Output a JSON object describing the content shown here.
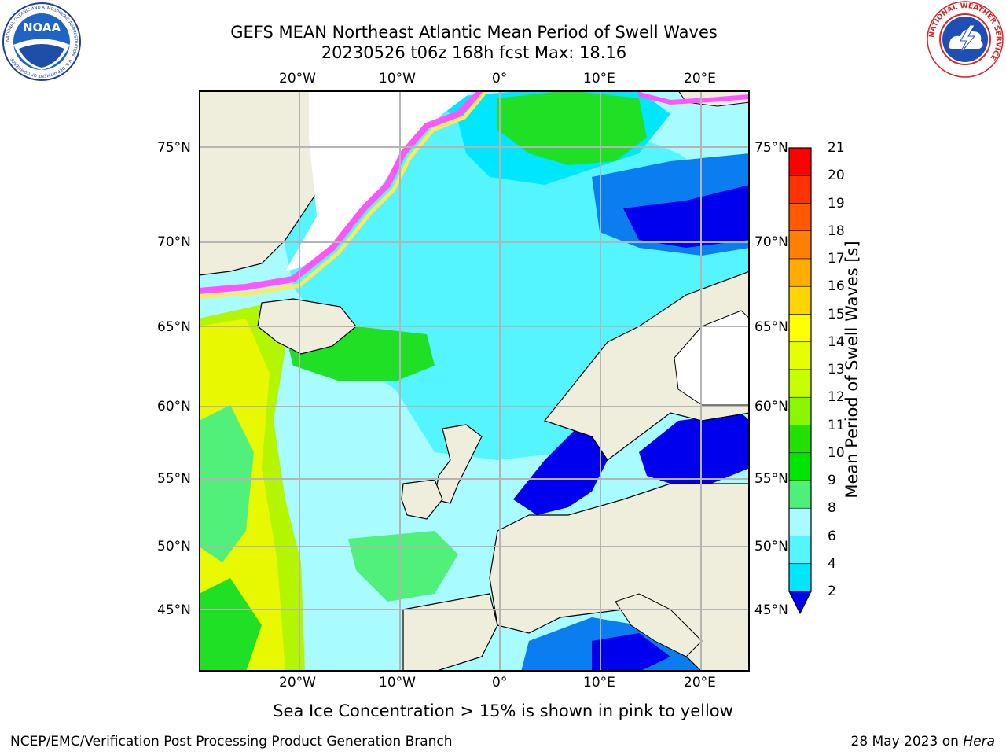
{
  "header": {
    "title_line1": "GEFS MEAN Northeast Atlantic Mean Period of Swell Waves",
    "title_line2": "20230526 t06z 168h fcst   Max: 18.16"
  },
  "logos": {
    "noaa_text": "NOAA",
    "noaa_ring_text": "NATIONAL OCEANIC AND ATMOSPHERIC ADMINISTRATION · U.S. DEPARTMENT OF COMMERCE",
    "nws_ring_text": "NATIONAL WEATHER SERVICE"
  },
  "map": {
    "lon_labels_top": [
      "20°W",
      "10°W",
      "0°",
      "10°E",
      "20°E"
    ],
    "lon_labels_bottom": [
      "20°W",
      "10°W",
      "0°",
      "10°E",
      "20°E"
    ],
    "lat_labels_left": [
      "75°N",
      "70°N",
      "65°N",
      "60°N",
      "55°N",
      "50°N",
      "45°N"
    ],
    "lat_labels_right": [
      "75°N",
      "70°N",
      "65°N",
      "60°N",
      "55°N",
      "50°N",
      "45°N"
    ],
    "ocean_colors": {
      "deep_blue": "#0000ee",
      "blue": "#0a7df0",
      "cyan": "#00e6ff",
      "light_cyan": "#55f5ff",
      "pale_cyan": "#a8fcff",
      "green_light": "#50f07a",
      "green": "#1fe024",
      "yellow_green": "#b4f500",
      "yellow": "#e8f800",
      "land": "#efeddc",
      "ice_pink": "#ff55ff",
      "ice_yellow": "#ffea55"
    }
  },
  "colorbar": {
    "label": "Mean Period of Swell Waves [s]",
    "ticks": [
      "21",
      "20",
      "19",
      "18",
      "17",
      "16",
      "15",
      "14",
      "13",
      "12",
      "11",
      "10",
      "9",
      "8",
      "6",
      "4",
      "2"
    ],
    "colors": [
      "#ff0000",
      "#ff3300",
      "#ff5a00",
      "#ff8000",
      "#ffae00",
      "#ffd500",
      "#ffff00",
      "#e6ff00",
      "#c8ff00",
      "#8cf500",
      "#24e000",
      "#00e600",
      "#4ef07a",
      "#a8fcff",
      "#55f5ff",
      "#00e6ff",
      "#0a7df0",
      "#0000ee"
    ]
  },
  "notes": {
    "ice_note": "Sea Ice Concentration > 15% is shown in pink to yellow"
  },
  "footer": {
    "left": "NCEP/EMC/Verification Post Processing Product Generation Branch",
    "right_prefix": "28 May 2023 on ",
    "right_host": "Hera"
  }
}
